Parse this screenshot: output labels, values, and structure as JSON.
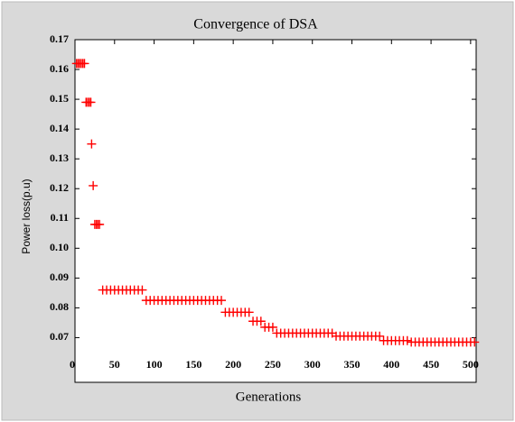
{
  "chart_data": {
    "type": "scatter",
    "title": "Convergence of DSA",
    "xlabel": "Generations",
    "ylabel": "Power loss(p.u)",
    "color": "#ff0000",
    "xlim": [
      0,
      507
    ],
    "ylim": [
      0.055,
      0.17
    ],
    "xticks": [
      0,
      50,
      100,
      150,
      200,
      250,
      300,
      350,
      400,
      450,
      500
    ],
    "yticks": [
      0.07,
      0.08,
      0.09,
      {
        "value": 0.1,
        "label": "0.10"
      },
      0.11,
      0.12,
      0.13,
      0.14,
      0.15,
      0.16,
      0.17
    ],
    "x": [
      2,
      4,
      6,
      8,
      10,
      12,
      14,
      16,
      18,
      20,
      21,
      23,
      25,
      27,
      29,
      31,
      35,
      40,
      45,
      50,
      55,
      60,
      65,
      70,
      75,
      80,
      85,
      90,
      95,
      100,
      105,
      110,
      115,
      120,
      125,
      130,
      135,
      140,
      145,
      150,
      155,
      160,
      165,
      170,
      175,
      180,
      185,
      190,
      195,
      200,
      205,
      210,
      215,
      220,
      225,
      230,
      235,
      240,
      245,
      250,
      255,
      260,
      265,
      270,
      275,
      280,
      285,
      290,
      295,
      300,
      305,
      310,
      315,
      320,
      325,
      330,
      335,
      340,
      345,
      350,
      355,
      360,
      365,
      370,
      375,
      380,
      385,
      390,
      395,
      400,
      405,
      410,
      415,
      420,
      425,
      430,
      435,
      440,
      445,
      450,
      455,
      460,
      465,
      470,
      475,
      480,
      485,
      490,
      495,
      500,
      505
    ],
    "values": [
      0.162,
      0.162,
      0.162,
      0.162,
      0.162,
      0.162,
      0.149,
      0.149,
      0.149,
      0.149,
      0.135,
      0.121,
      0.108,
      0.108,
      0.108,
      0.108,
      0.086,
      0.086,
      0.086,
      0.086,
      0.086,
      0.086,
      0.086,
      0.086,
      0.086,
      0.086,
      0.086,
      0.0825,
      0.0825,
      0.0825,
      0.0825,
      0.0825,
      0.0825,
      0.0825,
      0.0825,
      0.0825,
      0.0825,
      0.0825,
      0.0825,
      0.0825,
      0.0825,
      0.0825,
      0.0825,
      0.0825,
      0.0825,
      0.0825,
      0.0825,
      0.0785,
      0.0785,
      0.0785,
      0.0785,
      0.0785,
      0.0785,
      0.0785,
      0.0755,
      0.0755,
      0.0755,
      0.0735,
      0.0735,
      0.0735,
      0.0715,
      0.0715,
      0.0715,
      0.0715,
      0.0715,
      0.0715,
      0.0715,
      0.0715,
      0.0715,
      0.0715,
      0.0715,
      0.0715,
      0.0715,
      0.0715,
      0.0715,
      0.0705,
      0.0705,
      0.0705,
      0.0705,
      0.0705,
      0.0705,
      0.0705,
      0.0705,
      0.0705,
      0.0705,
      0.0705,
      0.0705,
      0.069,
      0.069,
      0.069,
      0.069,
      0.069,
      0.069,
      0.069,
      0.0685,
      0.0685,
      0.0685,
      0.0685,
      0.0685,
      0.0685,
      0.0685,
      0.0685,
      0.0685,
      0.0685,
      0.0685,
      0.0685,
      0.0685,
      0.0685,
      0.0685,
      0.0685,
      0.0685
    ]
  }
}
